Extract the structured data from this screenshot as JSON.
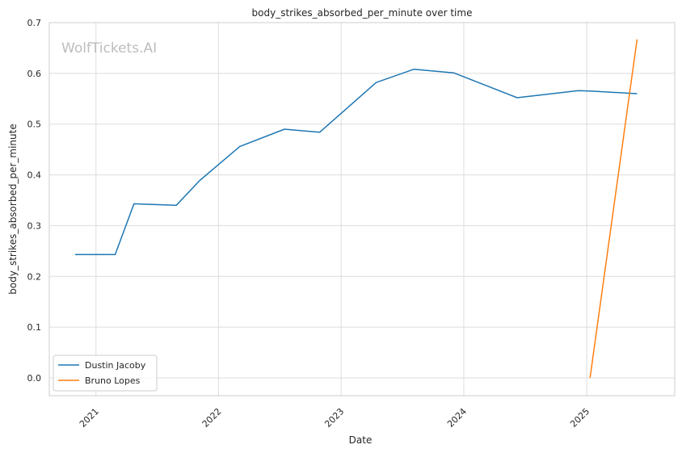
{
  "chart_data": {
    "type": "line",
    "title": "body_strikes_absorbed_per_minute over time",
    "xlabel": "Date",
    "ylabel": "body_strikes_absorbed_per_minute",
    "watermark": "WolfTickets.AI",
    "grid": true,
    "legend_position": "bottom-left",
    "xlim": [
      "2020-08-15",
      "2025-09-20"
    ],
    "ylim": [
      -0.035,
      0.7
    ],
    "x_ticks": [
      {
        "date": "2021-01-01",
        "label": "2021"
      },
      {
        "date": "2022-01-01",
        "label": "2022"
      },
      {
        "date": "2023-01-01",
        "label": "2023"
      },
      {
        "date": "2024-01-01",
        "label": "2024"
      },
      {
        "date": "2025-01-01",
        "label": "2025"
      }
    ],
    "y_ticks": [
      {
        "value": 0.0,
        "label": "0.0"
      },
      {
        "value": 0.1,
        "label": "0.1"
      },
      {
        "value": 0.2,
        "label": "0.2"
      },
      {
        "value": 0.3,
        "label": "0.3"
      },
      {
        "value": 0.4,
        "label": "0.4"
      },
      {
        "value": 0.5,
        "label": "0.5"
      },
      {
        "value": 0.6,
        "label": "0.6"
      },
      {
        "value": 0.7,
        "label": "0.7"
      }
    ],
    "series": [
      {
        "name": "Dustin Jacoby",
        "color": "#1f77b4",
        "points": [
          {
            "x": "2020-10-31",
            "y": 0.243
          },
          {
            "x": "2021-02-27",
            "y": 0.243
          },
          {
            "x": "2021-04-24",
            "y": 0.343
          },
          {
            "x": "2021-08-28",
            "y": 0.34
          },
          {
            "x": "2021-11-06",
            "y": 0.389
          },
          {
            "x": "2022-03-05",
            "y": 0.456
          },
          {
            "x": "2022-07-16",
            "y": 0.49
          },
          {
            "x": "2022-10-29",
            "y": 0.484
          },
          {
            "x": "2023-04-15",
            "y": 0.582
          },
          {
            "x": "2023-08-05",
            "y": 0.608
          },
          {
            "x": "2023-12-02",
            "y": 0.601
          },
          {
            "x": "2024-06-08",
            "y": 0.552
          },
          {
            "x": "2024-12-07",
            "y": 0.566
          },
          {
            "x": "2025-01-18",
            "y": 0.565
          },
          {
            "x": "2025-05-31",
            "y": 0.56
          }
        ]
      },
      {
        "name": "Bruno Lopes",
        "color": "#ff7f0e",
        "points": [
          {
            "x": "2025-01-11",
            "y": 0.0
          },
          {
            "x": "2025-05-31",
            "y": 0.667
          }
        ]
      }
    ]
  }
}
